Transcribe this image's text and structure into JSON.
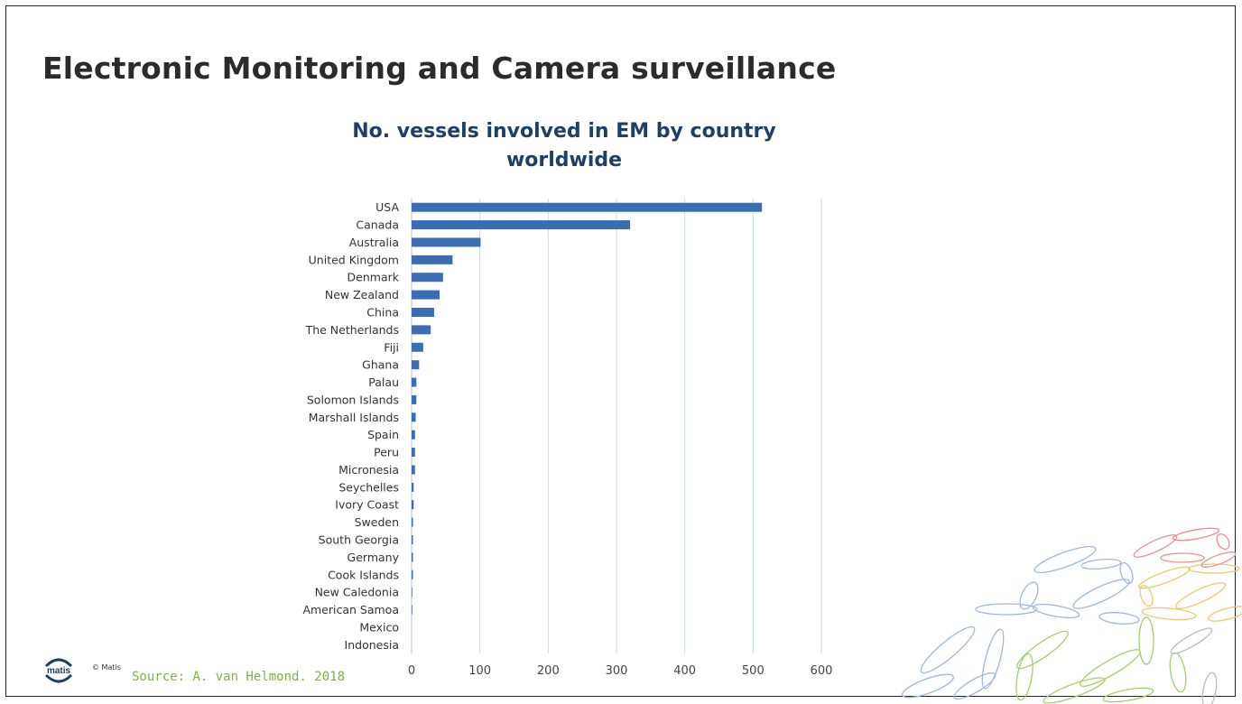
{
  "slide": {
    "title": "Electronic Monitoring and Camera surveillance",
    "source": "Source: A. van Helmond. 2018",
    "copyright": "© Matis",
    "logo_text": "matis"
  },
  "colors": {
    "bar": "#3a6db3",
    "grid": "#c5d9ea",
    "title": "#2b2b2b",
    "chart_title": "#1f3f6b",
    "source": "#7fb241"
  },
  "chart_data": {
    "type": "bar",
    "orientation": "horizontal",
    "title": "No. vessels involved in EM by country worldwide",
    "title_lines": [
      "No. vessels involved in EM by country",
      "worldwide"
    ],
    "xlabel": "",
    "ylabel": "",
    "xlim": [
      0,
      600
    ],
    "xticks": [
      0,
      100,
      200,
      300,
      400,
      500,
      600
    ],
    "grid": true,
    "categories": [
      "USA",
      "Canada",
      "Australia",
      "United Kingdom",
      "Denmark",
      "New Zealand",
      "China",
      "The Netherlands",
      "Fiji",
      "Ghana",
      "Palau",
      "Solomon Islands",
      "Marshall Islands",
      "Spain",
      "Peru",
      "Micronesia",
      "Seychelles",
      "Ivory Coast",
      "Sweden",
      "South Georgia",
      "Germany",
      "Cook Islands",
      "New Caledonia",
      "American Samoa",
      "Mexico",
      "Indonesia"
    ],
    "values": [
      513,
      320,
      101,
      60,
      46,
      41,
      33,
      28,
      17,
      11,
      7,
      7,
      6,
      5,
      5,
      5,
      3,
      3,
      2,
      2,
      2,
      2,
      1,
      1,
      0,
      0
    ]
  }
}
